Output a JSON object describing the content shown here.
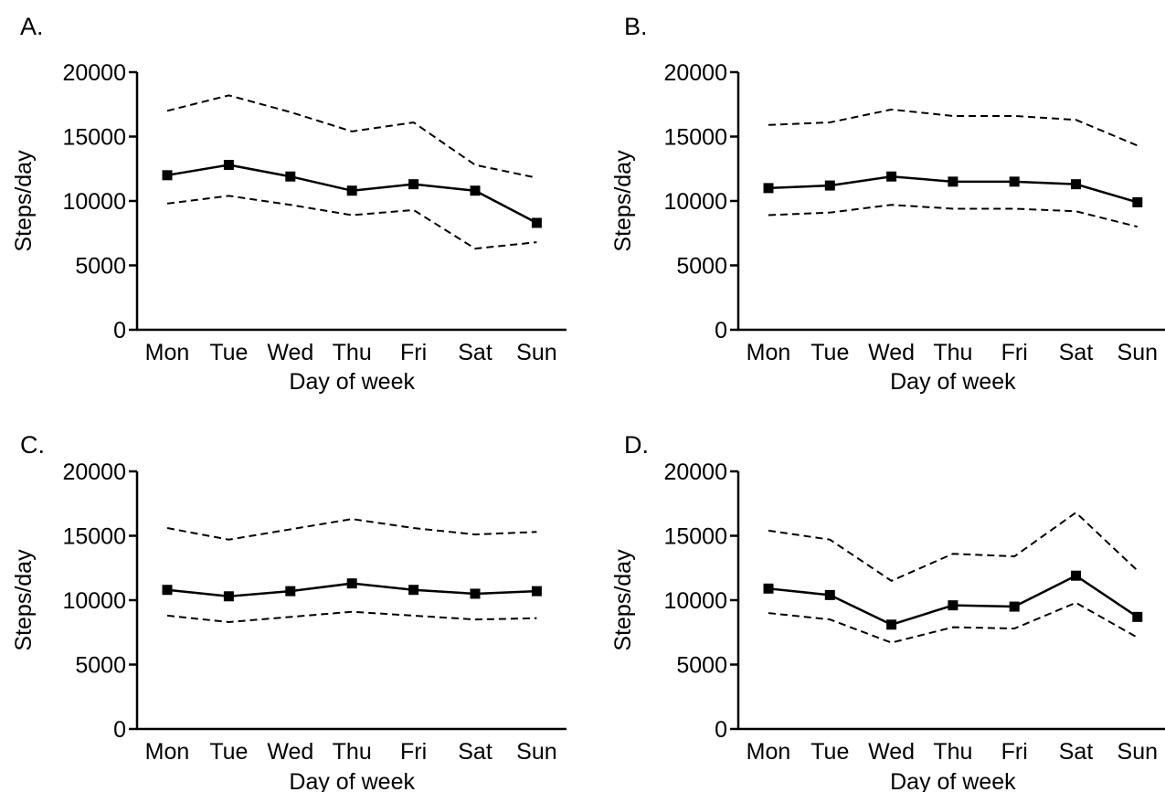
{
  "chart_data": [
    {
      "type": "line",
      "panel_label": "A.",
      "categories": [
        "Mon",
        "Tue",
        "Wed",
        "Thu",
        "Fri",
        "Sat",
        "Sun"
      ],
      "series": [
        {
          "role": "upper",
          "style": "dashed",
          "values": [
            17000,
            18200,
            16900,
            15400,
            16100,
            12800,
            11800
          ]
        },
        {
          "role": "mean",
          "style": "solid-square-markers",
          "values": [
            12000,
            12800,
            11900,
            10800,
            11300,
            10800,
            8300
          ]
        },
        {
          "role": "lower",
          "style": "dashed",
          "values": [
            9800,
            10400,
            9700,
            8900,
            9300,
            6300,
            6800
          ]
        }
      ],
      "xlabel": "Day of week",
      "ylabel": "Steps/day",
      "ylim": [
        0,
        20000
      ],
      "yticks": [
        0,
        5000,
        10000,
        15000,
        20000
      ],
      "grid": false
    },
    {
      "type": "line",
      "panel_label": "B.",
      "categories": [
        "Mon",
        "Tue",
        "Wed",
        "Thu",
        "Fri",
        "Sat",
        "Sun"
      ],
      "series": [
        {
          "role": "upper",
          "style": "dashed",
          "values": [
            15900,
            16100,
            17100,
            16600,
            16600,
            16300,
            14300
          ]
        },
        {
          "role": "mean",
          "style": "solid-square-markers",
          "values": [
            11000,
            11200,
            11900,
            11500,
            11500,
            11300,
            9900
          ]
        },
        {
          "role": "lower",
          "style": "dashed",
          "values": [
            8900,
            9100,
            9700,
            9400,
            9400,
            9200,
            8000
          ]
        }
      ],
      "xlabel": "Day of week",
      "ylabel": "Steps/day",
      "ylim": [
        0,
        20000
      ],
      "yticks": [
        0,
        5000,
        10000,
        15000,
        20000
      ],
      "grid": false
    },
    {
      "type": "line",
      "panel_label": "C.",
      "categories": [
        "Mon",
        "Tue",
        "Wed",
        "Thu",
        "Fri",
        "Sat",
        "Sun"
      ],
      "series": [
        {
          "role": "upper",
          "style": "dashed",
          "values": [
            15600,
            14700,
            15500,
            16300,
            15600,
            15100,
            15300
          ]
        },
        {
          "role": "mean",
          "style": "solid-square-markers",
          "values": [
            10800,
            10300,
            10700,
            11300,
            10800,
            10500,
            10700
          ]
        },
        {
          "role": "lower",
          "style": "dashed",
          "values": [
            8800,
            8300,
            8700,
            9100,
            8800,
            8500,
            8600
          ]
        }
      ],
      "xlabel": "Day of week",
      "ylabel": "Steps/day",
      "ylim": [
        0,
        20000
      ],
      "yticks": [
        0,
        5000,
        10000,
        15000,
        20000
      ],
      "grid": false
    },
    {
      "type": "line",
      "panel_label": "D.",
      "categories": [
        "Mon",
        "Tue",
        "Wed",
        "Thu",
        "Fri",
        "Sat",
        "Sun"
      ],
      "series": [
        {
          "role": "upper",
          "style": "dashed",
          "values": [
            15400,
            14700,
            11500,
            13600,
            13400,
            16800,
            12300
          ]
        },
        {
          "role": "mean",
          "style": "solid-square-markers",
          "values": [
            10900,
            10400,
            8100,
            9600,
            9500,
            11900,
            8700
          ]
        },
        {
          "role": "lower",
          "style": "dashed",
          "values": [
            9000,
            8500,
            6700,
            7900,
            7800,
            9800,
            7100
          ]
        }
      ],
      "xlabel": "Day of week",
      "ylabel": "Steps/day",
      "ylim": [
        0,
        20000
      ],
      "yticks": [
        0,
        5000,
        10000,
        15000,
        20000
      ],
      "grid": false
    }
  ]
}
